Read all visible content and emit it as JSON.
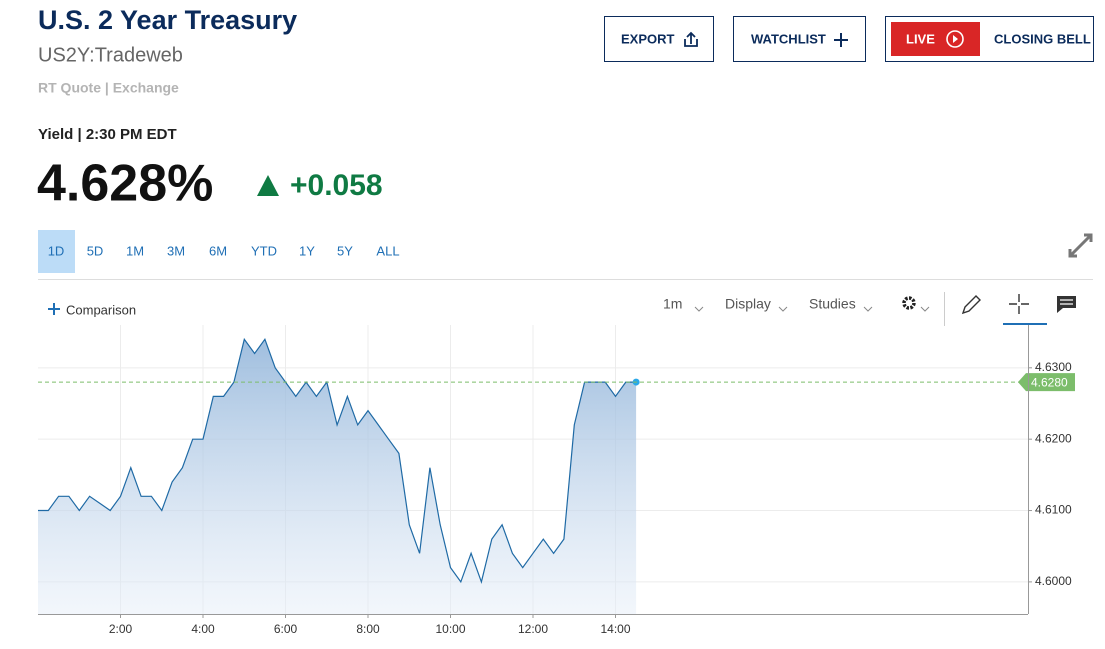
{
  "header": {
    "title": "U.S. 2 Year Treasury",
    "symbol": "US2Y:Tradeweb",
    "source": "RT Quote | Exchange",
    "yield_label": "Yield | 2:30 PM EDT",
    "price": "4.628%",
    "change": "+0.058"
  },
  "buttons": {
    "export": "EXPORT",
    "watchlist": "WATCHLIST",
    "live": "LIVE",
    "closing_bell": "CLOSING BELL"
  },
  "ranges": [
    "1D",
    "5D",
    "1M",
    "3M",
    "6M",
    "YTD",
    "1Y",
    "5Y",
    "ALL"
  ],
  "toolbar": {
    "comparison": "Comparison",
    "interval": "1m",
    "display": "Display",
    "studies": "Studies"
  },
  "chart_data": {
    "type": "line",
    "x": [
      0,
      0.25,
      0.5,
      0.75,
      1,
      1.25,
      1.5,
      1.75,
      2,
      2.25,
      2.5,
      2.75,
      3,
      3.25,
      3.5,
      3.75,
      4,
      4.25,
      4.5,
      4.75,
      5,
      5.25,
      5.5,
      5.75,
      6,
      6.25,
      6.5,
      6.75,
      7,
      7.25,
      7.5,
      7.75,
      8,
      8.25,
      8.5,
      8.75,
      9,
      9.25,
      9.5,
      9.75,
      10,
      10.25,
      10.5,
      10.75,
      11,
      11.25,
      11.5,
      11.75,
      12,
      12.25,
      12.5,
      12.75,
      13,
      13.25,
      13.5,
      13.75,
      14,
      14.25,
      14.5
    ],
    "series": [
      {
        "color": "#1f6aa5",
        "values": [
          4.61,
          4.61,
          4.612,
          4.612,
          4.61,
          4.612,
          4.611,
          4.61,
          4.612,
          4.616,
          4.612,
          4.612,
          4.61,
          4.614,
          4.616,
          4.62,
          4.62,
          4.626,
          4.626,
          4.628,
          4.634,
          4.632,
          4.634,
          4.63,
          4.628,
          4.626,
          4.628,
          4.626,
          4.628,
          4.622,
          4.626,
          4.622,
          4.624,
          4.622,
          4.62,
          4.618,
          4.608,
          4.604,
          4.616,
          4.608,
          4.602,
          4.6,
          4.604,
          4.6,
          4.606,
          4.608,
          4.604,
          4.602,
          4.604,
          4.606,
          4.604,
          4.606,
          4.622,
          4.628,
          4.628,
          4.628,
          4.626,
          4.628,
          4.628
        ]
      }
    ],
    "xlim": [
      0,
      24
    ],
    "xticks": [
      {
        "value": 2,
        "label": "2:00"
      },
      {
        "value": 4,
        "label": "4:00"
      },
      {
        "value": 6,
        "label": "6:00"
      },
      {
        "value": 8,
        "label": "8:00"
      },
      {
        "value": 10,
        "label": "10:00"
      },
      {
        "value": 12,
        "label": "12:00"
      },
      {
        "value": 14,
        "label": "14:00"
      }
    ],
    "ylim": [
      4.5955,
      4.636
    ],
    "yticks": [
      {
        "value": 4.6,
        "label": "4.6000"
      },
      {
        "value": 4.61,
        "label": "4.6100"
      },
      {
        "value": 4.62,
        "label": "4.6200"
      },
      {
        "value": 4.63,
        "label": "4.6300"
      }
    ],
    "grid": true,
    "reference_line": {
      "value": 4.628,
      "label": "4.6280",
      "color": "#7cbd6b"
    }
  }
}
